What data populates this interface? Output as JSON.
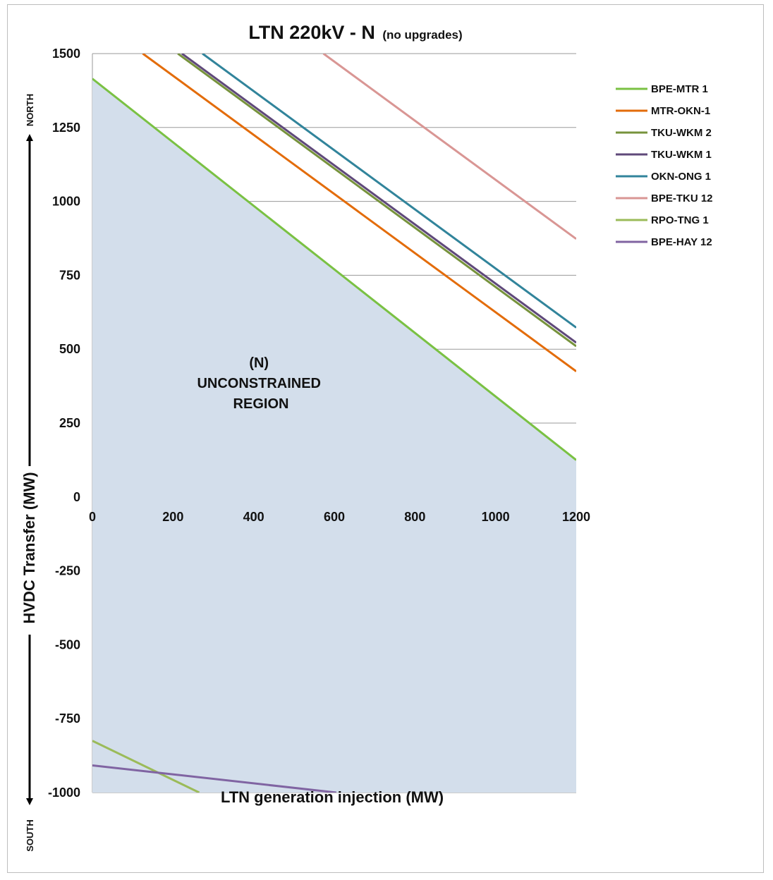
{
  "chart_data": {
    "type": "line",
    "title": "LTN 220kV - N",
    "subtitle": "(no upgrades)",
    "xlabel": "LTN generation injection (MW)",
    "ylabel": "HVDC Transfer (MW)",
    "north_label": "NORTH",
    "south_label": "SOUTH",
    "xlim": [
      0,
      1200
    ],
    "ylim": [
      -1000,
      1500
    ],
    "xticks": [
      "0",
      "200",
      "400",
      "600",
      "800",
      "1000",
      "1200"
    ],
    "yticks": [
      "1500",
      "1250",
      "1000",
      "750",
      "500",
      "250",
      "0",
      "-250",
      "-500",
      "-750",
      "-1000"
    ],
    "grid": "horizontal",
    "legend_position": "right",
    "region_label": [
      "(N)",
      "UNCONSTRAINED",
      "REGION"
    ],
    "region_color": "#d3deeb",
    "region_boundary": [
      [
        0,
        1415
      ],
      [
        1200,
        125
      ],
      [
        1200,
        -1000
      ],
      [
        0,
        -1000
      ]
    ],
    "series": [
      {
        "name": "BPE-MTR 1",
        "color": "#7ac143",
        "points": [
          [
            0,
            1415
          ],
          [
            1200,
            125
          ]
        ]
      },
      {
        "name": "MTR-OKN-1",
        "color": "#e36c0a",
        "points": [
          [
            125,
            1500
          ],
          [
            1200,
            425
          ]
        ]
      },
      {
        "name": "TKU-WKM 2",
        "color": "#77933c",
        "points": [
          [
            212,
            1500
          ],
          [
            1200,
            510
          ]
        ]
      },
      {
        "name": "TKU-WKM 1",
        "color": "#5f497a",
        "points": [
          [
            222,
            1500
          ],
          [
            1200,
            522
          ]
        ]
      },
      {
        "name": "OKN-ONG 1",
        "color": "#31849b",
        "points": [
          [
            273,
            1500
          ],
          [
            1200,
            573
          ]
        ]
      },
      {
        "name": "BPE-TKU 12",
        "color": "#d99694",
        "points": [
          [
            573,
            1500
          ],
          [
            1200,
            873
          ]
        ]
      },
      {
        "name": "RPO-TNG 1",
        "color": "#9bbb59",
        "points": [
          [
            0,
            -825
          ],
          [
            265,
            -1000
          ]
        ]
      },
      {
        "name": "BPE-HAY 12",
        "color": "#8064a2",
        "points": [
          [
            0,
            -908
          ],
          [
            605,
            -1000
          ]
        ]
      }
    ]
  }
}
